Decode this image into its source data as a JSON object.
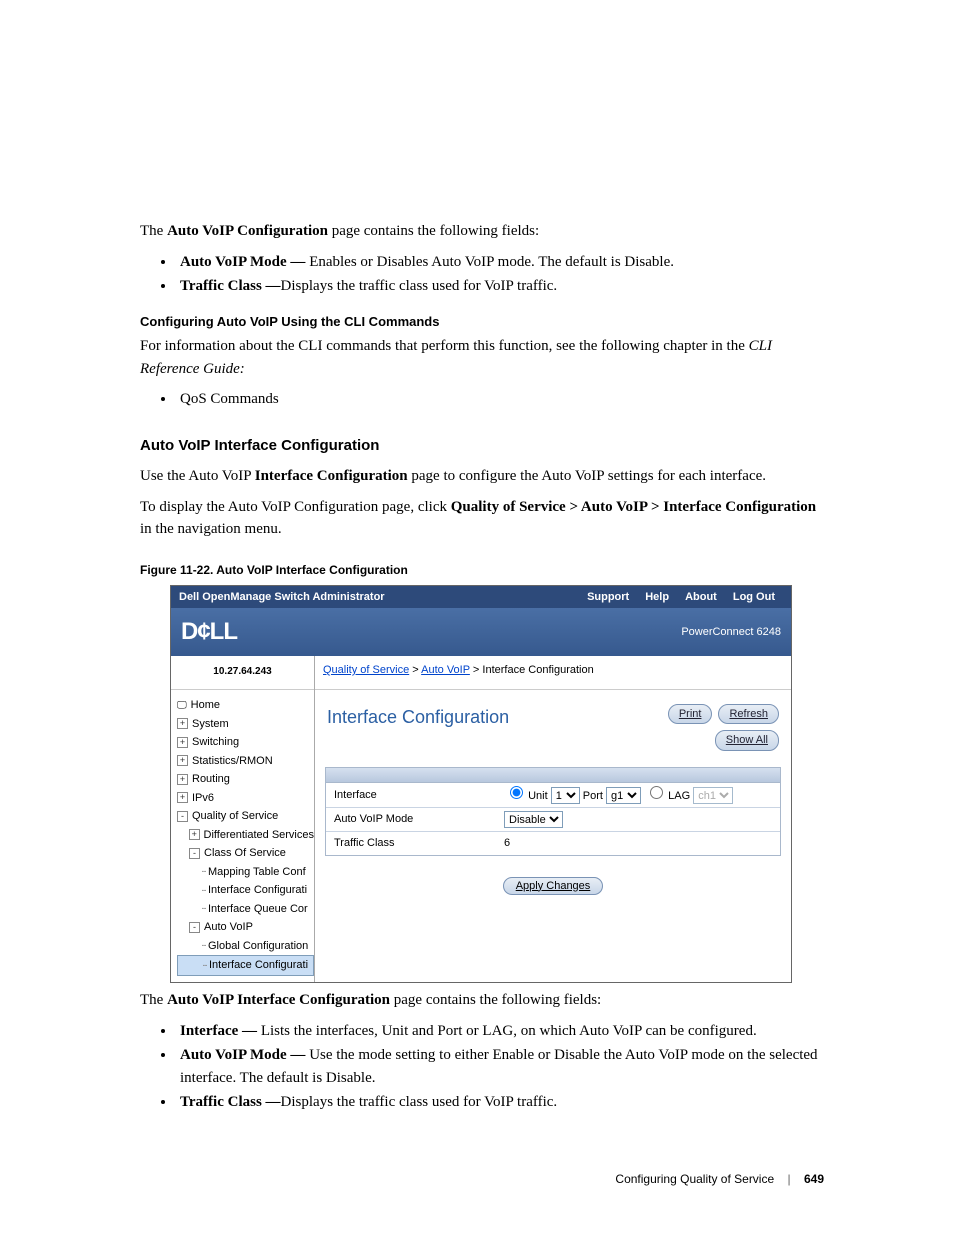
{
  "intro": {
    "line1_pre": "The ",
    "line1_b": "Auto VoIP Configuration",
    "line1_post": " page contains the following fields:",
    "b1_b": "Auto VoIP Mode — ",
    "b1_t": "Enables or Disables Auto VoIP mode. The default is Disable.",
    "b2_b": "Traffic Class —",
    "b2_t": "Displays the traffic class used for VoIP traffic."
  },
  "cli": {
    "heading": "Configuring Auto VoIP Using the CLI Commands",
    "para": "For information about the CLI commands that perform this function, see the following chapter in the ",
    "ref_i": "CLI Reference Guide:",
    "bullet": "QoS Commands"
  },
  "section": {
    "heading": "Auto VoIP Interface Configuration",
    "p1_pre": "Use the Auto VoIP ",
    "p1_b": "Interface Configuration",
    "p1_post": " page to configure the Auto VoIP settings for each interface.",
    "p2_pre": "To display the Auto VoIP Configuration page, click ",
    "p2_b": "Quality of Service > Auto VoIP > Interface Configuration",
    "p2_post": " in the navigation menu."
  },
  "figcap": "Figure 11-22.    Auto VoIP Interface Configuration",
  "shot": {
    "top": {
      "title": "Dell OpenManage Switch Administrator",
      "support": "Support",
      "help": "Help",
      "about": "About",
      "logout": "Log Out"
    },
    "brand": "D¢LL",
    "model": "PowerConnect 6248",
    "ip": "10.27.64.243",
    "tree": [
      {
        "lvl": 0,
        "icon": "home",
        "label": "Home"
      },
      {
        "lvl": 0,
        "icon": "+",
        "label": "System"
      },
      {
        "lvl": 0,
        "icon": "+",
        "label": "Switching"
      },
      {
        "lvl": 0,
        "icon": "+",
        "label": "Statistics/RMON"
      },
      {
        "lvl": 0,
        "icon": "+",
        "label": "Routing"
      },
      {
        "lvl": 0,
        "icon": "+",
        "label": "IPv6"
      },
      {
        "lvl": 0,
        "icon": "-",
        "label": "Quality of Service"
      },
      {
        "lvl": 1,
        "icon": "+",
        "label": "Differentiated Services"
      },
      {
        "lvl": 1,
        "icon": "-",
        "label": "Class Of Service"
      },
      {
        "lvl": 2,
        "icon": ".",
        "label": "Mapping Table Conf"
      },
      {
        "lvl": 2,
        "icon": ".",
        "label": "Interface Configurati"
      },
      {
        "lvl": 2,
        "icon": ".",
        "label": "Interface Queue Cor"
      },
      {
        "lvl": 1,
        "icon": "-",
        "label": "Auto VoIP"
      },
      {
        "lvl": 2,
        "icon": ".",
        "label": "Global Configuration"
      },
      {
        "lvl": 2,
        "icon": ".",
        "label": "Interface Configurati",
        "sel": true
      }
    ],
    "crumb": {
      "a": "Quality of Service",
      "b": "Auto VoIP",
      "c": "Interface Configuration"
    },
    "title": "Interface Configuration",
    "btns": {
      "print": "Print",
      "refresh": "Refresh",
      "showall": "Show All"
    },
    "rows": {
      "interface_lab": "Interface",
      "unit_lab": "Unit",
      "unit_val": "1",
      "port_lab": "Port",
      "port_val": "g1",
      "lag_lab": "LAG",
      "lag_val": "ch1",
      "mode_lab": "Auto VoIP Mode",
      "mode_val": "Disable",
      "tc_lab": "Traffic Class",
      "tc_val": "6"
    },
    "apply": "Apply Changes"
  },
  "after": {
    "line1_pre": "The ",
    "line1_b": "Auto VoIP Interface Configuration",
    "line1_post": " page contains the following fields:",
    "b1_b": "Interface — ",
    "b1_t": "Lists the interfaces, Unit and Port or LAG, on which Auto VoIP can be configured.",
    "b2_b": "Auto VoIP Mode — ",
    "b2_t": "Use the mode setting to either Enable or Disable the Auto VoIP mode on the selected interface. The default is Disable.",
    "b3_b": "Traffic Class —",
    "b3_t": "Displays the traffic class used for VoIP traffic."
  },
  "footer": {
    "text": "Configuring Quality of Service",
    "page": "649"
  }
}
